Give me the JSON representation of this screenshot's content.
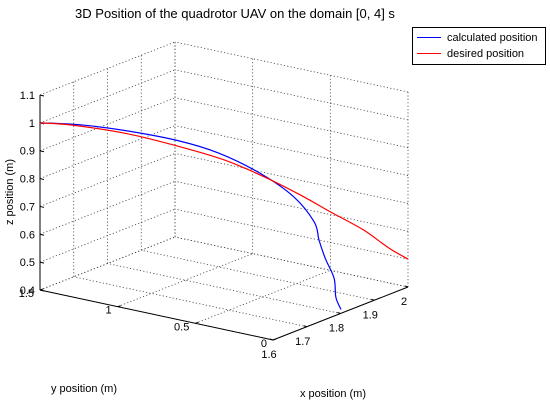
{
  "chart_data": {
    "type": "line",
    "title": "3D Position of the quadrotor UAV on the domain [0, 4] s",
    "xlabel": "x position (m)",
    "ylabel": "y position (m)",
    "zlabel": "z position (m)",
    "xlim": [
      1.6,
      2.0
    ],
    "ylim": [
      0,
      1.5
    ],
    "zlim": [
      0.4,
      1.1
    ],
    "xticks": [
      "1.6",
      "1.7",
      "1.8",
      "1.9",
      "2"
    ],
    "yticks": [
      "0",
      "0.5",
      "1",
      "1.5"
    ],
    "zticks": [
      "0.4",
      "0.5",
      "0.6",
      "0.7",
      "0.8",
      "0.9",
      "1",
      "1.1"
    ],
    "grid": true,
    "legend_position": "top-right",
    "series": [
      {
        "name": "calculated position",
        "color": "#0000ff",
        "points": [
          {
            "x": 1.6,
            "y": 1.5,
            "z": 1.0
          },
          {
            "x": 1.66,
            "y": 1.37,
            "z": 0.98
          },
          {
            "x": 1.72,
            "y": 1.2,
            "z": 0.95
          },
          {
            "x": 1.78,
            "y": 1.0,
            "z": 0.91
          },
          {
            "x": 1.83,
            "y": 0.85,
            "z": 0.86
          },
          {
            "x": 1.87,
            "y": 0.67,
            "z": 0.79
          },
          {
            "x": 1.9,
            "y": 0.52,
            "z": 0.71
          },
          {
            "x": 1.92,
            "y": 0.43,
            "z": 0.62
          },
          {
            "x": 1.93,
            "y": 0.42,
            "z": 0.55
          },
          {
            "x": 1.93,
            "y": 0.38,
            "z": 0.49
          },
          {
            "x": 1.91,
            "y": 0.28,
            "z": 0.44
          },
          {
            "x": 1.86,
            "y": 0.16,
            "z": 0.41
          },
          {
            "x": 1.82,
            "y": 0.04,
            "z": 0.4
          }
        ]
      },
      {
        "name": "desired position",
        "color": "#ff0000",
        "points": [
          {
            "x": 1.6,
            "y": 1.5,
            "z": 1.0
          },
          {
            "x": 1.65,
            "y": 1.4,
            "z": 0.98
          },
          {
            "x": 1.72,
            "y": 1.2,
            "z": 0.94
          },
          {
            "x": 1.78,
            "y": 1.0,
            "z": 0.89
          },
          {
            "x": 1.83,
            "y": 0.82,
            "z": 0.84
          },
          {
            "x": 1.87,
            "y": 0.64,
            "z": 0.78
          },
          {
            "x": 1.9,
            "y": 0.47,
            "z": 0.72
          },
          {
            "x": 1.93,
            "y": 0.34,
            "z": 0.66
          },
          {
            "x": 1.96,
            "y": 0.2,
            "z": 0.6
          },
          {
            "x": 1.98,
            "y": 0.08,
            "z": 0.54
          },
          {
            "x": 2.0,
            "y": 0.0,
            "z": 0.5
          }
        ]
      }
    ]
  }
}
